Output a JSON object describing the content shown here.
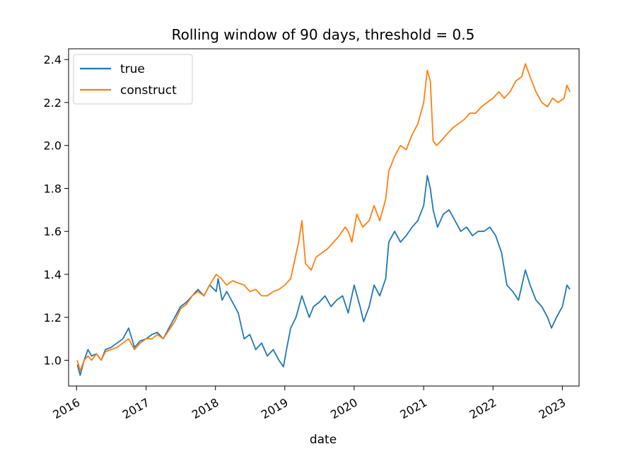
{
  "chart_data": {
    "type": "line",
    "title": "Rolling window of 90 days, threshold = 0.5",
    "xlabel": "date",
    "ylabel": "",
    "xlim": [
      "2015-11-20",
      "2023-03-30"
    ],
    "ylim": [
      0.88,
      2.45
    ],
    "x_ticks": [
      "2016",
      "2017",
      "2018",
      "2019",
      "2020",
      "2021",
      "2022",
      "2023"
    ],
    "y_ticks": [
      "1.0",
      "1.2",
      "1.4",
      "1.6",
      "1.8",
      "2.0",
      "2.2",
      "2.4"
    ],
    "legend_position": "top-left",
    "grid": false,
    "colors": {
      "true": "#1f77b4",
      "construct": "#ff7f0e"
    },
    "series": [
      {
        "name": "true",
        "x": [
          "2016-01-05",
          "2016-01-20",
          "2016-02-10",
          "2016-03-01",
          "2016-03-20",
          "2016-04-15",
          "2016-05-10",
          "2016-06-01",
          "2016-07-01",
          "2016-08-01",
          "2016-09-01",
          "2016-10-01",
          "2016-11-01",
          "2016-12-01",
          "2017-01-01",
          "2017-02-01",
          "2017-03-01",
          "2017-04-01",
          "2017-05-01",
          "2017-06-01",
          "2017-07-01",
          "2017-08-01",
          "2017-09-01",
          "2017-10-01",
          "2017-11-01",
          "2017-12-01",
          "2018-01-05",
          "2018-01-15",
          "2018-02-05",
          "2018-03-01",
          "2018-04-01",
          "2018-05-01",
          "2018-06-01",
          "2018-07-01",
          "2018-08-01",
          "2018-09-01",
          "2018-10-01",
          "2018-11-01",
          "2018-12-01",
          "2018-12-25",
          "2019-01-10",
          "2019-02-01",
          "2019-03-01",
          "2019-04-01",
          "2019-04-20",
          "2019-05-10",
          "2019-06-01",
          "2019-07-01",
          "2019-08-01",
          "2019-09-01",
          "2019-10-01",
          "2019-11-01",
          "2019-12-01",
          "2020-01-01",
          "2020-02-01",
          "2020-02-20",
          "2020-03-20",
          "2020-04-15",
          "2020-05-15",
          "2020-06-15",
          "2020-07-01",
          "2020-08-01",
          "2020-09-01",
          "2020-10-01",
          "2020-11-01",
          "2020-12-01",
          "2021-01-01",
          "2021-01-20",
          "2021-02-05",
          "2021-02-20",
          "2021-03-15",
          "2021-04-15",
          "2021-05-15",
          "2021-06-15",
          "2021-07-15",
          "2021-08-15",
          "2021-09-15",
          "2021-10-15",
          "2021-11-15",
          "2021-12-15",
          "2022-01-15",
          "2022-02-15",
          "2022-03-15",
          "2022-04-15",
          "2022-05-15",
          "2022-06-20",
          "2022-07-15",
          "2022-08-15",
          "2022-09-15",
          "2022-10-15",
          "2022-11-05",
          "2022-12-01",
          "2023-01-01",
          "2023-01-25",
          "2023-02-10"
        ],
        "y": [
          0.98,
          0.93,
          1.0,
          1.05,
          1.02,
          1.03,
          1.0,
          1.05,
          1.06,
          1.08,
          1.1,
          1.15,
          1.06,
          1.09,
          1.1,
          1.12,
          1.13,
          1.1,
          1.15,
          1.2,
          1.25,
          1.27,
          1.3,
          1.33,
          1.3,
          1.35,
          1.32,
          1.38,
          1.28,
          1.32,
          1.27,
          1.22,
          1.1,
          1.12,
          1.05,
          1.08,
          1.02,
          1.05,
          1.0,
          0.97,
          1.05,
          1.15,
          1.2,
          1.3,
          1.25,
          1.2,
          1.25,
          1.27,
          1.3,
          1.25,
          1.28,
          1.3,
          1.22,
          1.35,
          1.25,
          1.18,
          1.25,
          1.35,
          1.3,
          1.38,
          1.55,
          1.6,
          1.55,
          1.58,
          1.62,
          1.65,
          1.72,
          1.86,
          1.8,
          1.7,
          1.62,
          1.68,
          1.7,
          1.65,
          1.6,
          1.62,
          1.58,
          1.6,
          1.6,
          1.62,
          1.58,
          1.5,
          1.35,
          1.32,
          1.28,
          1.42,
          1.35,
          1.28,
          1.25,
          1.2,
          1.15,
          1.2,
          1.25,
          1.35,
          1.33
        ]
      },
      {
        "name": "construct",
        "x": [
          "2016-01-05",
          "2016-01-20",
          "2016-02-10",
          "2016-03-01",
          "2016-03-20",
          "2016-04-15",
          "2016-05-10",
          "2016-06-01",
          "2016-07-01",
          "2016-08-01",
          "2016-09-01",
          "2016-10-01",
          "2016-11-01",
          "2016-12-01",
          "2017-01-01",
          "2017-02-01",
          "2017-03-01",
          "2017-04-01",
          "2017-05-01",
          "2017-06-01",
          "2017-07-01",
          "2017-08-01",
          "2017-09-01",
          "2017-10-01",
          "2017-11-01",
          "2017-12-01",
          "2018-01-05",
          "2018-02-01",
          "2018-03-01",
          "2018-04-01",
          "2018-05-01",
          "2018-06-01",
          "2018-07-01",
          "2018-08-01",
          "2018-09-01",
          "2018-10-01",
          "2018-11-01",
          "2018-12-01",
          "2019-01-01",
          "2019-02-01",
          "2019-03-15",
          "2019-04-01",
          "2019-04-20",
          "2019-05-20",
          "2019-06-15",
          "2019-07-15",
          "2019-08-15",
          "2019-09-15",
          "2019-10-15",
          "2019-11-15",
          "2019-12-01",
          "2019-12-20",
          "2020-01-15",
          "2020-02-15",
          "2020-03-20",
          "2020-04-15",
          "2020-05-15",
          "2020-06-15",
          "2020-07-01",
          "2020-08-01",
          "2020-09-01",
          "2020-10-01",
          "2020-11-01",
          "2020-12-01",
          "2021-01-01",
          "2021-01-20",
          "2021-02-05",
          "2021-02-20",
          "2021-03-10",
          "2021-04-01",
          "2021-05-01",
          "2021-06-01",
          "2021-07-01",
          "2021-08-01",
          "2021-09-01",
          "2021-10-01",
          "2021-11-01",
          "2021-12-01",
          "2022-01-01",
          "2022-02-01",
          "2022-03-01",
          "2022-04-01",
          "2022-05-01",
          "2022-06-01",
          "2022-06-20",
          "2022-07-15",
          "2022-08-15",
          "2022-09-15",
          "2022-10-15",
          "2022-11-10",
          "2022-12-10",
          "2023-01-10",
          "2023-01-25",
          "2023-02-10"
        ],
        "y": [
          1.0,
          0.95,
          1.0,
          1.02,
          1.0,
          1.03,
          1.0,
          1.04,
          1.05,
          1.06,
          1.08,
          1.1,
          1.05,
          1.08,
          1.1,
          1.1,
          1.12,
          1.1,
          1.14,
          1.18,
          1.24,
          1.26,
          1.3,
          1.32,
          1.3,
          1.35,
          1.4,
          1.38,
          1.35,
          1.37,
          1.36,
          1.35,
          1.32,
          1.33,
          1.3,
          1.3,
          1.32,
          1.33,
          1.35,
          1.38,
          1.55,
          1.65,
          1.45,
          1.42,
          1.48,
          1.5,
          1.52,
          1.55,
          1.58,
          1.62,
          1.6,
          1.55,
          1.68,
          1.62,
          1.65,
          1.72,
          1.65,
          1.75,
          1.88,
          1.95,
          2.0,
          1.98,
          2.05,
          2.1,
          2.2,
          2.35,
          2.3,
          2.02,
          2.0,
          2.02,
          2.05,
          2.08,
          2.1,
          2.12,
          2.15,
          2.15,
          2.18,
          2.2,
          2.22,
          2.25,
          2.22,
          2.25,
          2.3,
          2.32,
          2.38,
          2.32,
          2.25,
          2.2,
          2.18,
          2.22,
          2.2,
          2.22,
          2.28,
          2.25
        ]
      }
    ]
  }
}
